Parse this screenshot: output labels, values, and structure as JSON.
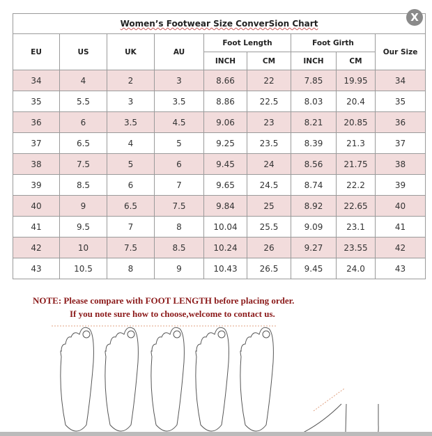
{
  "title": "Women’s Footwear Size ConverSion Chart",
  "close_icon": "close-x-icon",
  "headers": {
    "eu": "EU",
    "us": "US",
    "uk": "UK",
    "au": "AU",
    "foot_length": "Foot Length",
    "foot_girth": "Foot Girth",
    "our_size": "Our Size",
    "inch": "INCH",
    "cm": "CM"
  },
  "rows": [
    [
      "34",
      "4",
      "2",
      "3",
      "8.66",
      "22",
      "7.85",
      "19.95",
      "34"
    ],
    [
      "35",
      "5.5",
      "3",
      "3.5",
      "8.86",
      "22.5",
      "8.03",
      "20.4",
      "35"
    ],
    [
      "36",
      "6",
      "3.5",
      "4.5",
      "9.06",
      "23",
      "8.21",
      "20.85",
      "36"
    ],
    [
      "37",
      "6.5",
      "4",
      "5",
      "9.25",
      "23.5",
      "8.39",
      "21.3",
      "37"
    ],
    [
      "38",
      "7.5",
      "5",
      "6",
      "9.45",
      "24",
      "8.56",
      "21.75",
      "38"
    ],
    [
      "39",
      "8.5",
      "6",
      "7",
      "9.65",
      "24.5",
      "8.74",
      "22.2",
      "39"
    ],
    [
      "40",
      "9",
      "6.5",
      "7.5",
      "9.84",
      "25",
      "8.92",
      "22.65",
      "40"
    ],
    [
      "41",
      "9.5",
      "7",
      "8",
      "10.04",
      "25.5",
      "9.09",
      "23.1",
      "41"
    ],
    [
      "42",
      "10",
      "7.5",
      "8.5",
      "10.24",
      "26",
      "9.27",
      "23.55",
      "42"
    ],
    [
      "43",
      "10.5",
      "8",
      "9",
      "10.43",
      "26.5",
      "9.45",
      "24.0",
      "43"
    ]
  ],
  "colors": {
    "pink_row": "#f2dcdc",
    "note_text": "#8b1a1a"
  },
  "note": {
    "line1": "NOTE: Please compare with FOOT LENGTH before placing order.",
    "line2": "If you note sure how to choose,welcome to contact us."
  }
}
